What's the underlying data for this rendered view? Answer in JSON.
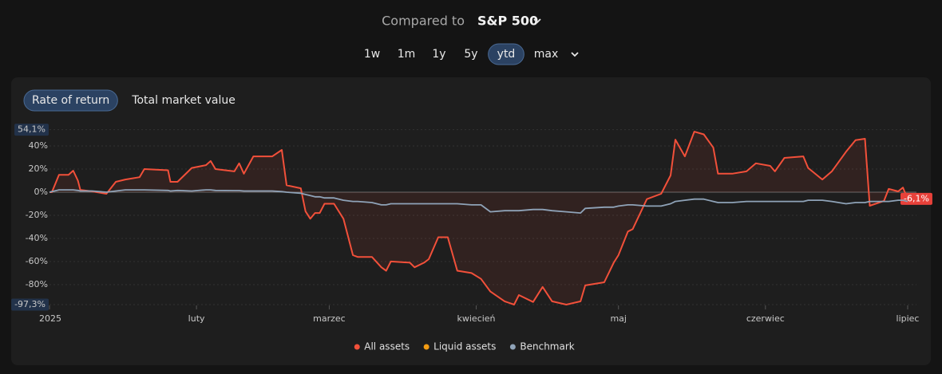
{
  "header": {
    "label": "Compared to",
    "benchmark": "S&P 500"
  },
  "periods": [
    "1w",
    "1m",
    "1y",
    "5y",
    "ytd",
    "max"
  ],
  "selected_period": "ytd",
  "tabs": [
    "Rate of return",
    "Total market value"
  ],
  "selected_tab": "Rate of return",
  "chart_data": {
    "type": "line",
    "x": [
      0,
      0.5,
      2,
      4,
      5,
      6,
      6.5,
      9,
      12,
      14,
      16,
      19,
      20,
      25,
      25.5,
      27,
      30,
      33,
      34,
      35,
      39,
      40,
      41,
      43,
      47,
      49,
      50,
      53,
      54,
      55,
      56,
      57,
      58,
      60,
      62,
      64,
      65,
      68,
      70,
      71,
      72,
      76,
      77,
      79,
      80,
      82,
      84,
      86,
      89,
      91,
      93,
      96,
      98,
      99,
      102,
      104,
      106,
      109,
      112,
      113,
      117,
      119,
      120,
      122,
      123,
      126,
      129,
      131,
      132,
      134,
      136,
      138,
      140,
      141,
      144,
      147,
      149,
      152,
      153,
      155,
      159,
      160,
      163,
      165,
      168,
      170,
      172,
      173,
      176,
      177,
      179,
      180,
      181
    ],
    "xlim": [
      0,
      181
    ],
    "xticks": [
      {
        "value": 0,
        "label": "2025"
      },
      {
        "value": 31,
        "label": "luty"
      },
      {
        "value": 59,
        "label": "marzec"
      },
      {
        "value": 90,
        "label": "kwiecień"
      },
      {
        "value": 120,
        "label": "maj"
      },
      {
        "value": 151,
        "label": "czerwiec"
      },
      {
        "value": 181,
        "label": "lipiec"
      }
    ],
    "ylim": [
      -97.3,
      54.1
    ],
    "yticks": [
      {
        "value": -97.3,
        "label": "-97,3%"
      },
      {
        "value": -80,
        "label": "-80%"
      },
      {
        "value": -60,
        "label": "-60%"
      },
      {
        "value": -40,
        "label": "-40%"
      },
      {
        "value": -20,
        "label": "-20%"
      },
      {
        "value": 0,
        "label": "0%"
      },
      {
        "value": 20,
        "label": "20%"
      },
      {
        "value": 40,
        "label": "40%"
      },
      {
        "value": 54.1,
        "label": "54,1%"
      }
    ],
    "grid": true,
    "series": [
      {
        "name": "All assets",
        "color": "#f2503a",
        "last_value_label": "-6,1%",
        "values": [
          0,
          0,
          15,
          15,
          18.6,
          10,
          2,
          0.7,
          -1.4,
          9,
          11,
          13,
          20,
          19,
          9,
          9,
          21,
          23.4,
          27,
          20,
          18,
          25,
          16,
          31,
          31,
          36.6,
          6,
          3.4,
          -16.6,
          -23,
          -18,
          -18,
          -10,
          -10,
          -23,
          -54.5,
          -56,
          -56,
          -65,
          -68,
          -60,
          -61,
          -65,
          -61,
          -58,
          -39,
          -39,
          -68,
          -70,
          -75,
          -86,
          -94.5,
          -97.3,
          -89,
          -95,
          -82,
          -94.5,
          -97.3,
          -94.5,
          -80.7,
          -78,
          -61,
          -54.5,
          -34,
          -32,
          -6,
          -1.4,
          14.5,
          45.5,
          31,
          52.4,
          50,
          38.6,
          16,
          16,
          18,
          25,
          22.8,
          18,
          29.7,
          31,
          21,
          11,
          18,
          35,
          45,
          46.2,
          -11.7,
          -7.6,
          2.8,
          0.7,
          4,
          -6.1
        ]
      },
      {
        "name": "Liquid assets",
        "color": "#f39c12"
      },
      {
        "name": "Benchmark",
        "color": "#8fa3b8",
        "values": [
          0,
          0.5,
          2,
          2,
          2,
          1.5,
          1,
          1,
          0,
          1,
          2,
          2,
          2,
          1.5,
          1,
          1.5,
          1,
          2,
          2,
          1.5,
          1.4,
          1.4,
          1,
          1,
          1,
          0.5,
          0,
          -1,
          -2,
          -3,
          -4,
          -4,
          -5,
          -5,
          -7,
          -8,
          -8,
          -9,
          -11,
          -11,
          -10,
          -10,
          -10,
          -10,
          -10,
          -10,
          -10,
          -10,
          -11,
          -11,
          -17,
          -16,
          -16,
          -16,
          -15,
          -15,
          -16,
          -17,
          -18,
          -14,
          -13,
          -13,
          -12,
          -11,
          -11,
          -12,
          -12,
          -10,
          -8,
          -7,
          -6,
          -6,
          -8,
          -9,
          -9,
          -8,
          -8,
          -8,
          -8,
          -8,
          -8,
          -7,
          -7,
          -8,
          -10,
          -9,
          -9,
          -8,
          -8,
          -8,
          -7,
          -7,
          -8
        ]
      }
    ]
  }
}
